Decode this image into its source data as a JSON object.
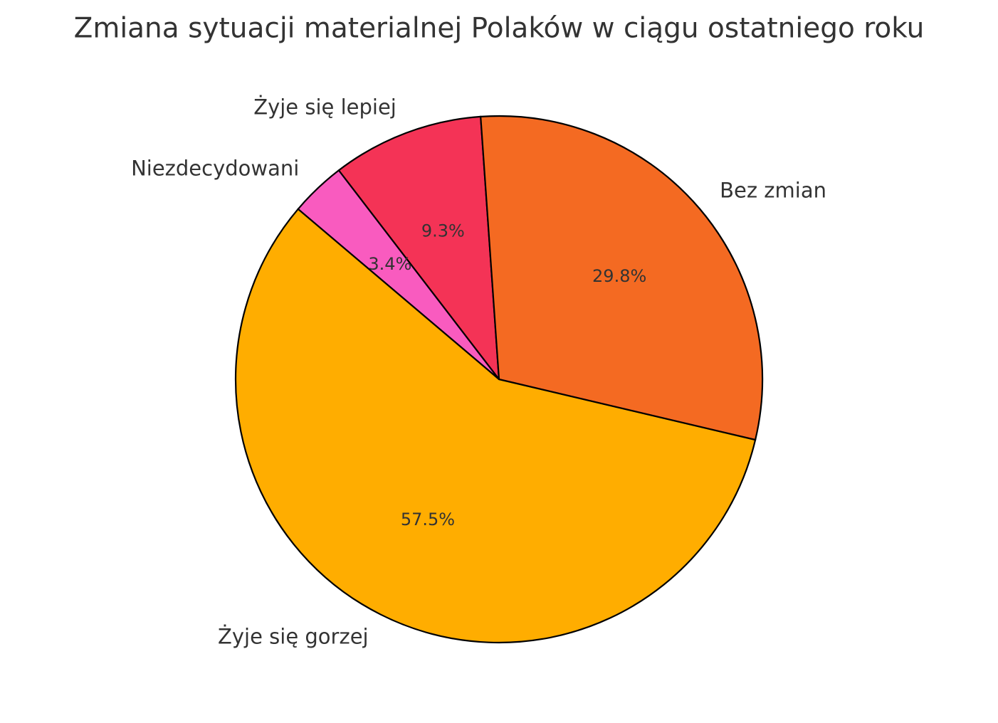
{
  "chart_data": {
    "type": "pie",
    "title": "Zmiana sytuacji materialnej Polaków w ciągu ostatniego roku",
    "categories": [
      "Żyje się lepiej",
      "Niezdecydowani",
      "Żyje się gorzej",
      "Bez zmian"
    ],
    "values": [
      9.3,
      3.4,
      57.5,
      29.8
    ],
    "value_labels": [
      "9.3%",
      "3.4%",
      "57.5%",
      "29.8%"
    ],
    "colors": [
      "#f43356",
      "#f95bbf",
      "#ffad00",
      "#f46a22"
    ]
  }
}
